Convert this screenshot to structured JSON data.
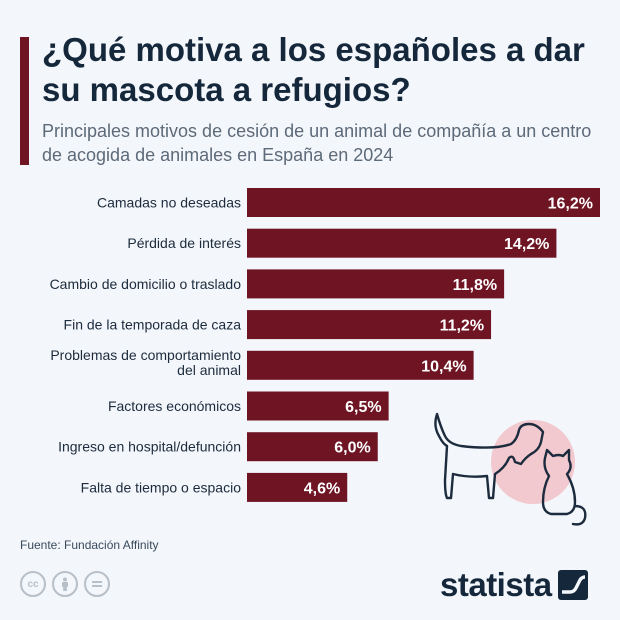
{
  "header": {
    "title": "¿Qué motiva a los españoles a dar su mascota a refugios?",
    "subtitle": "Principales motivos de cesión de un animal de compañía a un centro de acogida de animales en España en 2024"
  },
  "footer": {
    "source": "Fuente: Fundación Affinity",
    "brand": "statista"
  },
  "colors": {
    "bar": "#6e1423",
    "accent": "#6e1423",
    "illustration_circle": "#f2c9cf",
    "background": "#f3f6fa"
  },
  "icons": [
    "creative-commons-icon",
    "attribution-icon",
    "no-derivatives-icon",
    "statista-logo-icon",
    "dog-and-cat-illustration"
  ],
  "chart_data": {
    "type": "bar",
    "orientation": "horizontal",
    "categories": [
      "Camadas no deseadas",
      "Pérdida de interés",
      "Cambio de domicilio o traslado",
      "Fin de la temporada de caza",
      "Problemas de comportamiento del animal",
      "Factores económicos",
      "Ingreso en hospital/defunción",
      "Falta de tiempo o espacio"
    ],
    "values": [
      16.2,
      14.2,
      11.8,
      11.2,
      10.4,
      6.5,
      6.0,
      4.6
    ],
    "value_labels": [
      "16,2%",
      "14,2%",
      "11,8%",
      "11,2%",
      "10,4%",
      "6,5%",
      "6,0%",
      "4,6%"
    ],
    "unit": "%",
    "xlim": [
      0,
      16.2
    ],
    "grid": false,
    "legend": "none"
  }
}
